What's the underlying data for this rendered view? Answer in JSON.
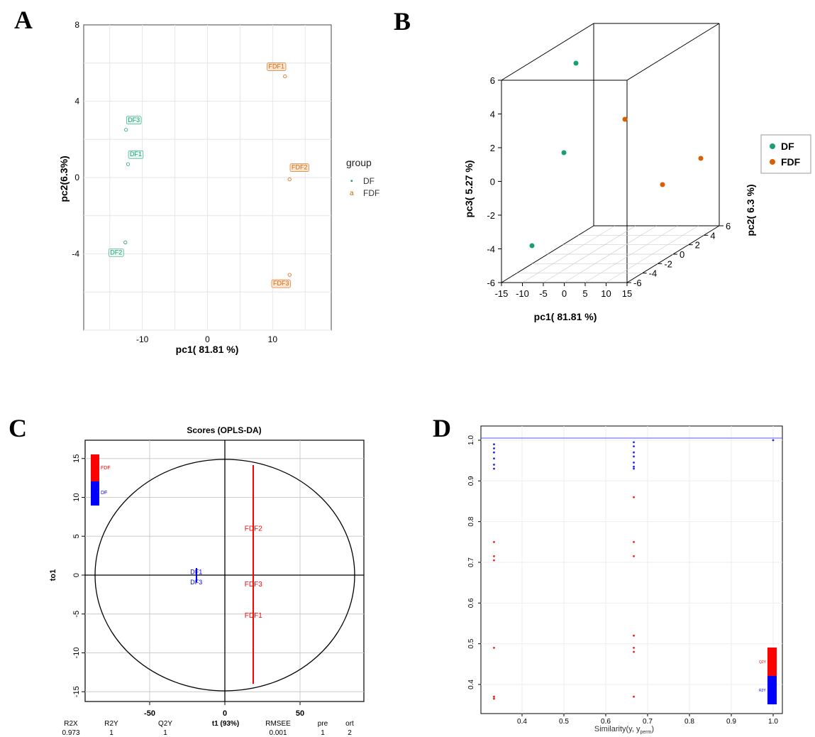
{
  "panels": [
    "A",
    "B",
    "C",
    "D"
  ],
  "colors": {
    "DF": "#1b9e77",
    "FDF": "#d95f02",
    "opls_DF": "#0000ff",
    "opls_FDF": "#ff0000",
    "accent": "#5555ff"
  },
  "chart_data": [
    {
      "type": "scatter",
      "panel": "A",
      "xlabel": "pc1( 81.81 %)",
      "ylabel": "pc2(6.3%)",
      "x_ticks": [
        "-10",
        "0",
        "10"
      ],
      "y_ticks": [
        "8",
        "4",
        "0",
        "-4"
      ],
      "xlim": [
        -19,
        19
      ],
      "ylim": [
        -8,
        8
      ],
      "legend_title": "group",
      "legend": [
        "DF",
        "FDF"
      ],
      "legend_position": "right",
      "series": [
        {
          "name": "DF",
          "points": [
            {
              "label": "DF3",
              "x": -12.5,
              "y": 2.5
            },
            {
              "label": "DF1",
              "x": -12.2,
              "y": 0.7
            },
            {
              "label": "DF2",
              "x": -12.6,
              "y": -3.4
            }
          ]
        },
        {
          "name": "FDF",
          "points": [
            {
              "label": "FDF1",
              "x": 11.9,
              "y": 5.3
            },
            {
              "label": "FDF2",
              "x": 12.6,
              "y": -0.1
            },
            {
              "label": "FDF3",
              "x": 12.6,
              "y": -5.1
            }
          ]
        }
      ]
    },
    {
      "type": "scatter",
      "panel": "B",
      "xlabel": "pc1( 81.81 %)",
      "ylabel": "pc3( 5.27 %)",
      "zlabel": "pc2( 6.3 %)",
      "x_ticks": [
        "-15",
        "-10",
        "-5",
        "0",
        "5",
        "10",
        "15"
      ],
      "y_ticks": [
        "6",
        "4",
        "2",
        "0",
        "-2",
        "-4",
        "-6"
      ],
      "z_ticks": [
        "-6",
        "-4",
        "-2",
        "0",
        "2",
        "4",
        "6"
      ],
      "legend": [
        "DF",
        "FDF"
      ],
      "legend_position": "right"
    },
    {
      "type": "scatter",
      "panel": "C",
      "title": "Scores (OPLS-DA)",
      "ylabel": "to1",
      "x_ticks": [
        "-50",
        "0",
        "50"
      ],
      "y_ticks": [
        "15",
        "10",
        "5",
        "0",
        "-5",
        "-10",
        "-15"
      ],
      "xlim": [
        -85,
        85
      ],
      "ylim": [
        -16,
        17
      ],
      "legend": [
        "FDF",
        "DF"
      ],
      "points": [
        {
          "label": "FDF2",
          "x": 19,
          "y": 6
        },
        {
          "label": "FDF3",
          "x": 19,
          "y": -1.2
        },
        {
          "label": "FDF1",
          "x": 19,
          "y": -5.2
        },
        {
          "label": "DF1",
          "x": -19,
          "y": 0.4
        },
        {
          "label": "DF3",
          "x": -19,
          "y": -0.9
        }
      ],
      "summary_headers": [
        "R2X",
        "R2Y",
        "Q2Y",
        "t1 (93%)",
        "RMSEE",
        "pre",
        "ort"
      ],
      "summary_values": [
        "0.973",
        "1",
        "1",
        "",
        "0.001",
        "1",
        "2"
      ]
    },
    {
      "type": "scatter",
      "panel": "D",
      "xlabel": "Similarity(y, y",
      "xlabel_sub": "perm",
      "xlabel_end": ")",
      "x_ticks": [
        "0.4",
        "0.5",
        "0.6",
        "0.7",
        "0.8",
        "0.9",
        "1.0"
      ],
      "y_ticks": [
        "1.0",
        "0.9",
        "0.8",
        "0.7",
        "0.6",
        "0.5",
        "0.4"
      ],
      "xlim": [
        0.32,
        1.02
      ],
      "ylim": [
        0.35,
        1.02
      ],
      "legend": [
        "Q2Y",
        "R2Y"
      ],
      "series": [
        {
          "name": "R2Y",
          "points": [
            {
              "x": 0.333,
              "y": 0.99
            },
            {
              "x": 0.333,
              "y": 0.98
            },
            {
              "x": 0.333,
              "y": 0.97
            },
            {
              "x": 0.333,
              "y": 0.955
            },
            {
              "x": 0.333,
              "y": 0.94
            },
            {
              "x": 0.333,
              "y": 0.93
            },
            {
              "x": 0.667,
              "y": 0.995
            },
            {
              "x": 0.667,
              "y": 0.985
            },
            {
              "x": 0.667,
              "y": 0.97
            },
            {
              "x": 0.667,
              "y": 0.96
            },
            {
              "x": 0.667,
              "y": 0.945
            },
            {
              "x": 0.667,
              "y": 0.935
            },
            {
              "x": 0.667,
              "y": 0.93
            },
            {
              "x": 1.0,
              "y": 1.0
            }
          ]
        },
        {
          "name": "Q2Y",
          "points": [
            {
              "x": 0.333,
              "y": 0.75
            },
            {
              "x": 0.333,
              "y": 0.715
            },
            {
              "x": 0.333,
              "y": 0.705
            },
            {
              "x": 0.333,
              "y": 0.49
            },
            {
              "x": 0.333,
              "y": 0.37
            },
            {
              "x": 0.333,
              "y": 0.365
            },
            {
              "x": 0.667,
              "y": 0.86
            },
            {
              "x": 0.667,
              "y": 0.75
            },
            {
              "x": 0.667,
              "y": 0.715
            },
            {
              "x": 0.667,
              "y": 0.52
            },
            {
              "x": 0.667,
              "y": 0.49
            },
            {
              "x": 0.667,
              "y": 0.48
            },
            {
              "x": 0.667,
              "y": 0.37
            }
          ]
        }
      ]
    }
  ]
}
